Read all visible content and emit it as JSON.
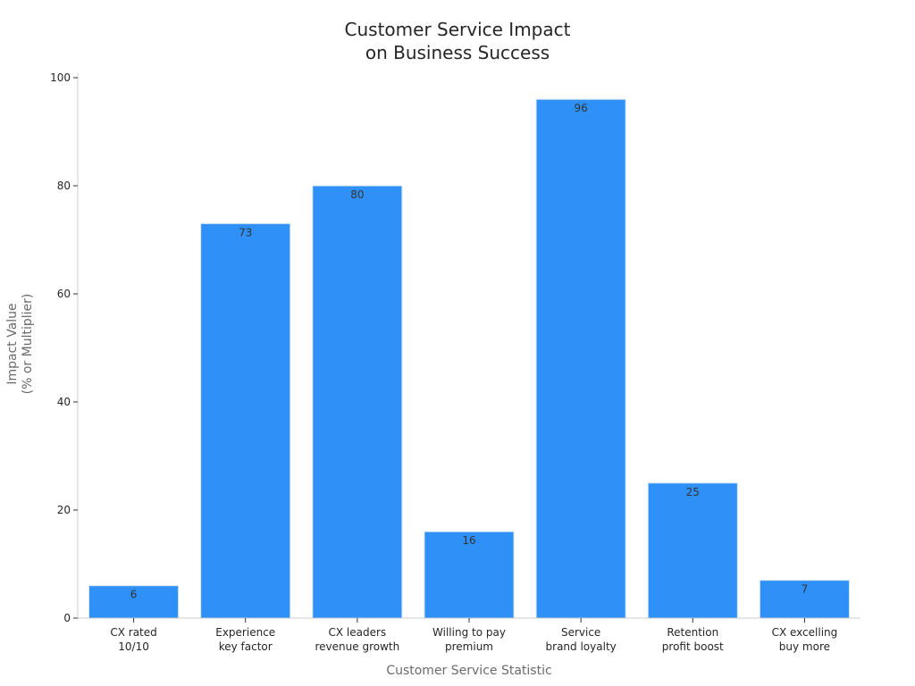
{
  "chart_data": {
    "type": "bar",
    "title": [
      "Customer Service Impact",
      "on Business Success"
    ],
    "xlabel": "Customer Service Statistic",
    "ylabel": [
      "Impact Value",
      "(% or Multiplier)"
    ],
    "ylim": [
      0,
      100
    ],
    "yticks": [
      0,
      20,
      40,
      60,
      80,
      100
    ],
    "categories": [
      [
        "CX rated",
        "10/10"
      ],
      [
        "Experience",
        "key factor"
      ],
      [
        "CX leaders",
        "revenue growth"
      ],
      [
        "Willing to pay",
        "premium"
      ],
      [
        "Service",
        "brand loyalty"
      ],
      [
        "Retention",
        "profit boost"
      ],
      [
        "CX excelling",
        "buy more"
      ]
    ],
    "values": [
      6,
      73,
      80,
      16,
      96,
      25,
      7
    ],
    "bar_color": "#2f91f8",
    "grid": false,
    "legend": "none"
  }
}
